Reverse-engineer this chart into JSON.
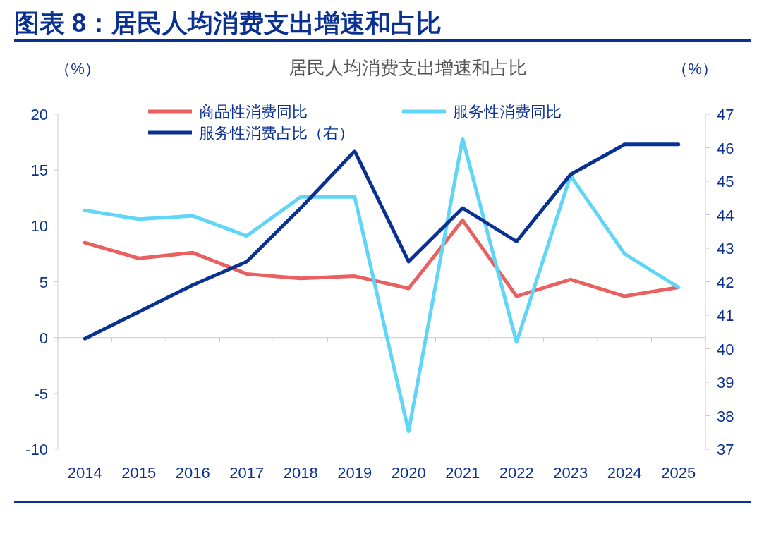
{
  "chart_data": {
    "type": "line",
    "title": "图表 8：居民人均消费支出增速和占比",
    "subtitle": "居民人均消费支出增速和占比",
    "ylabel": "（%）",
    "y2label": "（%）",
    "categories": [
      "2014",
      "2015",
      "2016",
      "2017",
      "2018",
      "2019",
      "2020",
      "2021",
      "2022",
      "2023",
      "2024",
      "2025"
    ],
    "series": [
      {
        "name": "商品性消费同比",
        "color": "#e8605f",
        "values": [
          8.5,
          7.1,
          7.6,
          5.7,
          5.3,
          5.5,
          4.4,
          10.5,
          3.7,
          5.2,
          3.7,
          4.5
        ]
      },
      {
        "name": "服务性消费同比",
        "color": "#5fd5f7",
        "values": [
          11.4,
          10.6,
          10.9,
          9.1,
          12.6,
          12.6,
          -8.4,
          17.8,
          -0.4,
          14.5,
          7.5,
          4.5
        ]
      },
      {
        "name": "服务性消费占比（右）",
        "color": "#0a3192",
        "axis": "y2",
        "values": [
          40.3,
          41.1,
          41.9,
          42.6,
          44.2,
          45.9,
          42.6,
          44.2,
          43.2,
          45.2,
          46.1,
          46.1
        ]
      }
    ],
    "ylim": [
      -10,
      20
    ],
    "yticks": [
      -10,
      -5,
      0,
      5,
      10,
      15,
      20
    ],
    "y2lim": [
      37,
      47
    ],
    "y2ticks": [
      37,
      38,
      39,
      40,
      41,
      42,
      43,
      44,
      45,
      46,
      47
    ],
    "legend": "top"
  }
}
